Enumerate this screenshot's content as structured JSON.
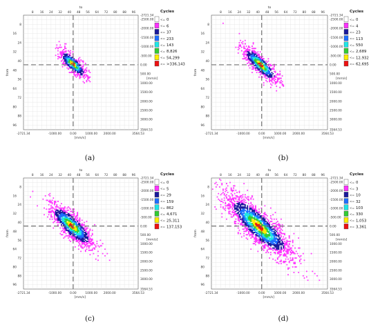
{
  "figure": {
    "captions": [
      "(a)",
      "(b)",
      "(c)",
      "(d)"
    ]
  },
  "chart_data": [
    {
      "type": "heatmap",
      "id": "a",
      "caption": "(a)",
      "x_ticks": [
        "8",
        "16",
        "24",
        "32",
        "40",
        "48",
        "56",
        "64",
        "72",
        "80",
        "88",
        "96"
      ],
      "x_label": "to",
      "y_ticks": [
        "8",
        "24",
        "40",
        "56",
        "72",
        "88"
      ],
      "y_ticks_minor": [
        "16",
        "32",
        "48",
        "64",
        "80",
        "96"
      ],
      "y_label": "from",
      "bottom_ticks": [
        "-2721.34",
        "-1000.00",
        "0.00",
        "1000.00",
        "2000.00",
        "3564.53"
      ],
      "bottom_label": "[mm/s]",
      "right_ticks": [
        "-2721.34",
        "-2500.00",
        "-2000.00",
        "-1500.00",
        "-1000.00",
        "-500.00",
        "0.00",
        "500.00",
        "1000.00",
        "1500.00",
        "2000.00",
        "2500.00",
        "3000.00",
        "3564.53"
      ],
      "right_label": "[mm/s]",
      "legend_title": "Cycles",
      "legend_marker": "<=",
      "legend": [
        {
          "label": "0",
          "color": "#ffffff"
        },
        {
          "label": "6",
          "color": "#ff33ff"
        },
        {
          "label": "37",
          "color": "#1a1a9c"
        },
        {
          "label": "233",
          "color": "#1f6fff"
        },
        {
          "label": "143",
          "color": "#1fe6e6"
        },
        {
          "label": "8,826",
          "color": "#33cc33"
        },
        {
          "label": "54,299",
          "color": "#ffee00"
        },
        {
          "label": ">336,143",
          "color": "#ee1111"
        }
      ],
      "center": [
        43.0,
        42.5
      ],
      "spread_along": 8.5,
      "spread_across": 2.8,
      "points": 620
    },
    {
      "type": "heatmap",
      "id": "b",
      "caption": "(b)",
      "x_ticks": [
        "8",
        "16",
        "24",
        "32",
        "40",
        "48",
        "56",
        "64",
        "72",
        "80",
        "88",
        "96"
      ],
      "x_label": "to",
      "y_ticks": [
        "8",
        "24",
        "40",
        "56",
        "72",
        "88"
      ],
      "y_ticks_minor": [
        "16",
        "32",
        "48",
        "64",
        "80",
        "96"
      ],
      "y_label": "from",
      "bottom_ticks": [
        "-2721.34",
        "-1000.00",
        "0.00",
        "1000.00",
        "2000.00",
        "3564.53"
      ],
      "bottom_label": "[mm/s]",
      "right_ticks": [
        "-2721.34",
        "-2500.00",
        "-2000.00",
        "-1500.00",
        "-1000.00",
        "-500.00",
        "0.00",
        "500.00",
        "1000.00",
        "1500.00",
        "2000.00",
        "2500.00",
        "3000.00",
        "3564.53"
      ],
      "right_label": "[mm/s]",
      "legend_title": "Cycles",
      "legend_marker": "<=",
      "legend": [
        {
          "label": "0",
          "color": "#ffffff"
        },
        {
          "label": "4",
          "color": "#ff33ff"
        },
        {
          "label": "23",
          "color": "#1a1a9c"
        },
        {
          "label": "113",
          "color": "#1f6fff"
        },
        {
          "label": "550",
          "color": "#1fe6e6"
        },
        {
          "label": "2,689",
          "color": "#33cc33"
        },
        {
          "label": "12,932",
          "color": "#ffee00"
        },
        {
          "label": "62,695",
          "color": "#ee1111"
        }
      ],
      "center": [
        42.0,
        43.0
      ],
      "spread_along": 11.0,
      "spread_across": 3.2,
      "points": 760
    },
    {
      "type": "heatmap",
      "id": "c",
      "caption": "(c)",
      "x_ticks": [
        "8",
        "16",
        "24",
        "32",
        "40",
        "48",
        "56",
        "64",
        "72",
        "80",
        "88",
        "96"
      ],
      "x_label": "to",
      "y_ticks": [
        "8",
        "24",
        "40",
        "56",
        "72",
        "88"
      ],
      "y_ticks_minor": [
        "16",
        "32",
        "48",
        "64",
        "80",
        "96"
      ],
      "y_label": "from",
      "bottom_ticks": [
        "-2721.34",
        "-1000.00",
        "0.00",
        "1000.00",
        "2000.00",
        "3564.53"
      ],
      "bottom_label": "[mm/s]",
      "right_ticks": [
        "-2721.34",
        "-2500.00",
        "-2000.00",
        "-1500.00",
        "-1000.00",
        "-500.00",
        "0.00",
        "500.00",
        "1000.00",
        "1500.00",
        "2000.00",
        "2500.00",
        "3000.00",
        "3564.53"
      ],
      "right_label": "[mm/s]",
      "legend_title": "Cycles",
      "legend_marker": "<=",
      "legend": [
        {
          "label": "0",
          "color": "#ffffff"
        },
        {
          "label": "5",
          "color": "#ff33ff"
        },
        {
          "label": "29",
          "color": "#1a1a9c"
        },
        {
          "label": "159",
          "color": "#1f6fff"
        },
        {
          "label": "862",
          "color": "#1fe6e6"
        },
        {
          "label": "4,671",
          "color": "#33cc33"
        },
        {
          "label": "25,311",
          "color": "#ffee00"
        },
        {
          "label": "137,153",
          "color": "#ee1111"
        }
      ],
      "center": [
        42.0,
        43.0
      ],
      "spread_along": 13.5,
      "spread_across": 4.3,
      "points": 1300
    },
    {
      "type": "heatmap",
      "id": "d",
      "caption": "(d)",
      "x_ticks": [
        "8",
        "16",
        "24",
        "32",
        "40",
        "48",
        "56",
        "64",
        "72",
        "80",
        "88",
        "96"
      ],
      "x_label": "to",
      "y_ticks": [
        "8",
        "24",
        "40",
        "56",
        "72",
        "88"
      ],
      "y_ticks_minor": [
        "16",
        "32",
        "48",
        "64",
        "80",
        "96"
      ],
      "y_label": "from",
      "bottom_ticks": [
        "-2721.34",
        "-1000.00",
        "0.00",
        "1000.00",
        "2000.00",
        "3564.53"
      ],
      "bottom_label": "[mm/s]",
      "right_ticks": [
        "-2721.34",
        "-2500.00",
        "-2000.00",
        "-1500.00",
        "-1000.00",
        "-500.00",
        "0.00",
        "500.00",
        "1000.00",
        "1500.00",
        "2000.00",
        "2500.00",
        "3000.00",
        "3564.53"
      ],
      "right_label": "[mm/s]",
      "legend_title": "Cycles",
      "legend_marker": "<=",
      "legend": [
        {
          "label": "0",
          "color": "#ffffff"
        },
        {
          "label": "3",
          "color": "#ff33ff"
        },
        {
          "label": "10",
          "color": "#1a1a9c"
        },
        {
          "label": "32",
          "color": "#1f6fff"
        },
        {
          "label": "103",
          "color": "#1fe6e6"
        },
        {
          "label": "330",
          "color": "#33cc33"
        },
        {
          "label": "1,053",
          "color": "#ffee00"
        },
        {
          "label": "3,361",
          "color": "#ee1111"
        }
      ],
      "center": [
        41.0,
        43.5
      ],
      "spread_along": 20.0,
      "spread_across": 5.8,
      "points": 2100
    }
  ]
}
